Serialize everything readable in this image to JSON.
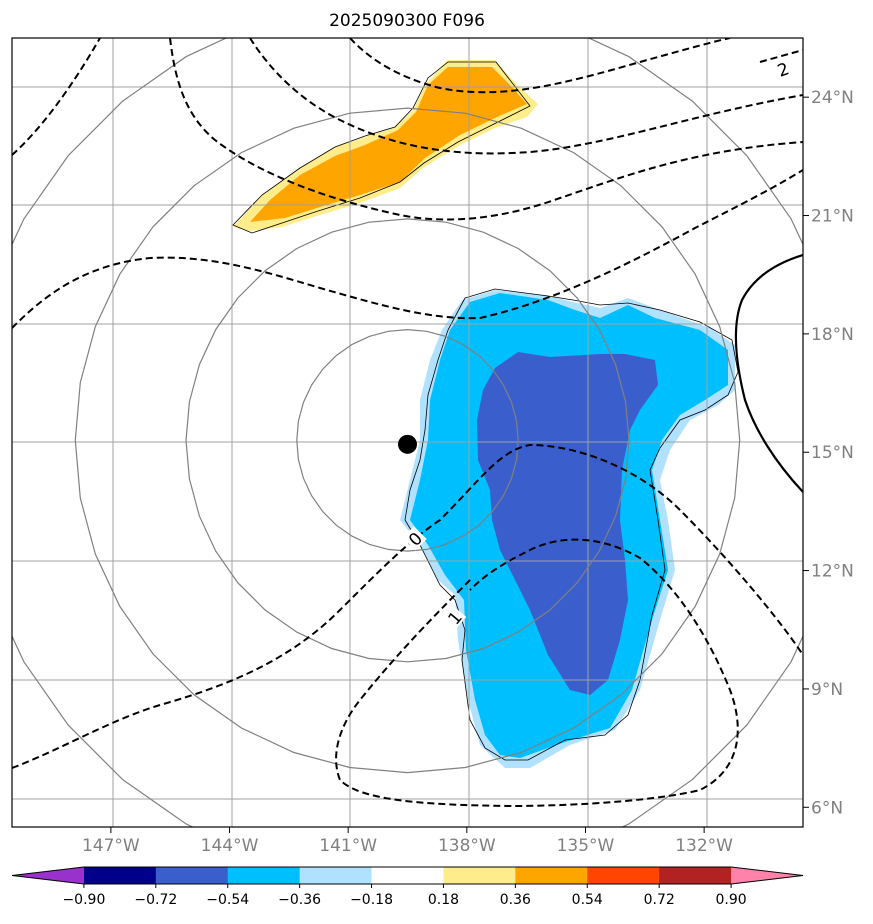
{
  "chart_data": {
    "type": "contour-map",
    "title": "2025090300 F096",
    "lon_range": [
      -149.5,
      -129.5
    ],
    "lat_range": [
      5.5,
      25.5
    ],
    "lon_ticks": [
      {
        "value": -147,
        "label": "147°W"
      },
      {
        "value": -144,
        "label": "144°W"
      },
      {
        "value": -141,
        "label": "141°W"
      },
      {
        "value": -138,
        "label": "138°W"
      },
      {
        "value": -135,
        "label": "135°W"
      },
      {
        "value": -132,
        "label": "132°W"
      }
    ],
    "lat_ticks": [
      {
        "value": 6,
        "label": "6°N"
      },
      {
        "value": 9,
        "label": "9°N"
      },
      {
        "value": 12,
        "label": "12°N"
      },
      {
        "value": 15,
        "label": "15°N"
      },
      {
        "value": 18,
        "label": "18°N"
      },
      {
        "value": 21,
        "label": "21°N"
      },
      {
        "value": 24,
        "label": "24°N"
      }
    ],
    "center_marker": {
      "lon": -139.5,
      "lat": 15.2
    },
    "range_rings_deg": [
      2.8,
      5.6,
      8.4,
      11.2
    ],
    "contour_labels": [
      {
        "text": "0",
        "lon": -139.3,
        "lat": 12.8,
        "rotate": -45
      },
      {
        "text": "1",
        "lon": -138.3,
        "lat": 10.8,
        "rotate": -50
      },
      {
        "text": "2",
        "lon": -130.0,
        "lat": 24.7,
        "rotate": -20
      }
    ],
    "colorbar": {
      "levels": [
        -0.9,
        -0.72,
        -0.54,
        -0.36,
        -0.18,
        0.18,
        0.36,
        0.54,
        0.72,
        0.9
      ],
      "tick_labels": [
        "−0.90",
        "−0.72",
        "−0.54",
        "−0.36",
        "−0.18",
        "0.18",
        "0.36",
        "0.54",
        "0.72",
        "0.90"
      ],
      "colors": [
        "#9932cc",
        "#00008b",
        "#3a5fcd",
        "#00bfff",
        "#b0e2ff",
        "#ffffff",
        "#ffec8b",
        "#ffa500",
        "#ff4500",
        "#b22222",
        "#ff82ab"
      ],
      "extend": "both"
    }
  }
}
